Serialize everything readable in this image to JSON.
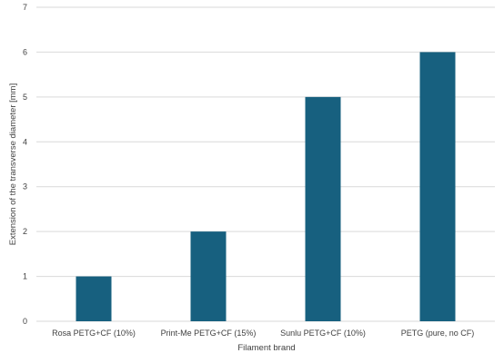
{
  "chart_data": {
    "type": "bar",
    "title": "",
    "xlabel": "Filament brand",
    "ylabel": "Extension of the transverse diameter [mm]",
    "categories": [
      "Rosa PETG+CF (10%)",
      "Print-Me PETG+CF (15%)",
      "Sunlu PETG+CF (10%)",
      "PETG (pure, no CF)"
    ],
    "values": [
      1,
      2,
      5,
      6
    ],
    "ylim": [
      0,
      7
    ],
    "yticks": [
      0,
      1,
      2,
      3,
      4,
      5,
      6,
      7
    ],
    "grid": true,
    "legend": "none",
    "bar_color": "#17607f",
    "grid_color": "#d9d9d9"
  }
}
